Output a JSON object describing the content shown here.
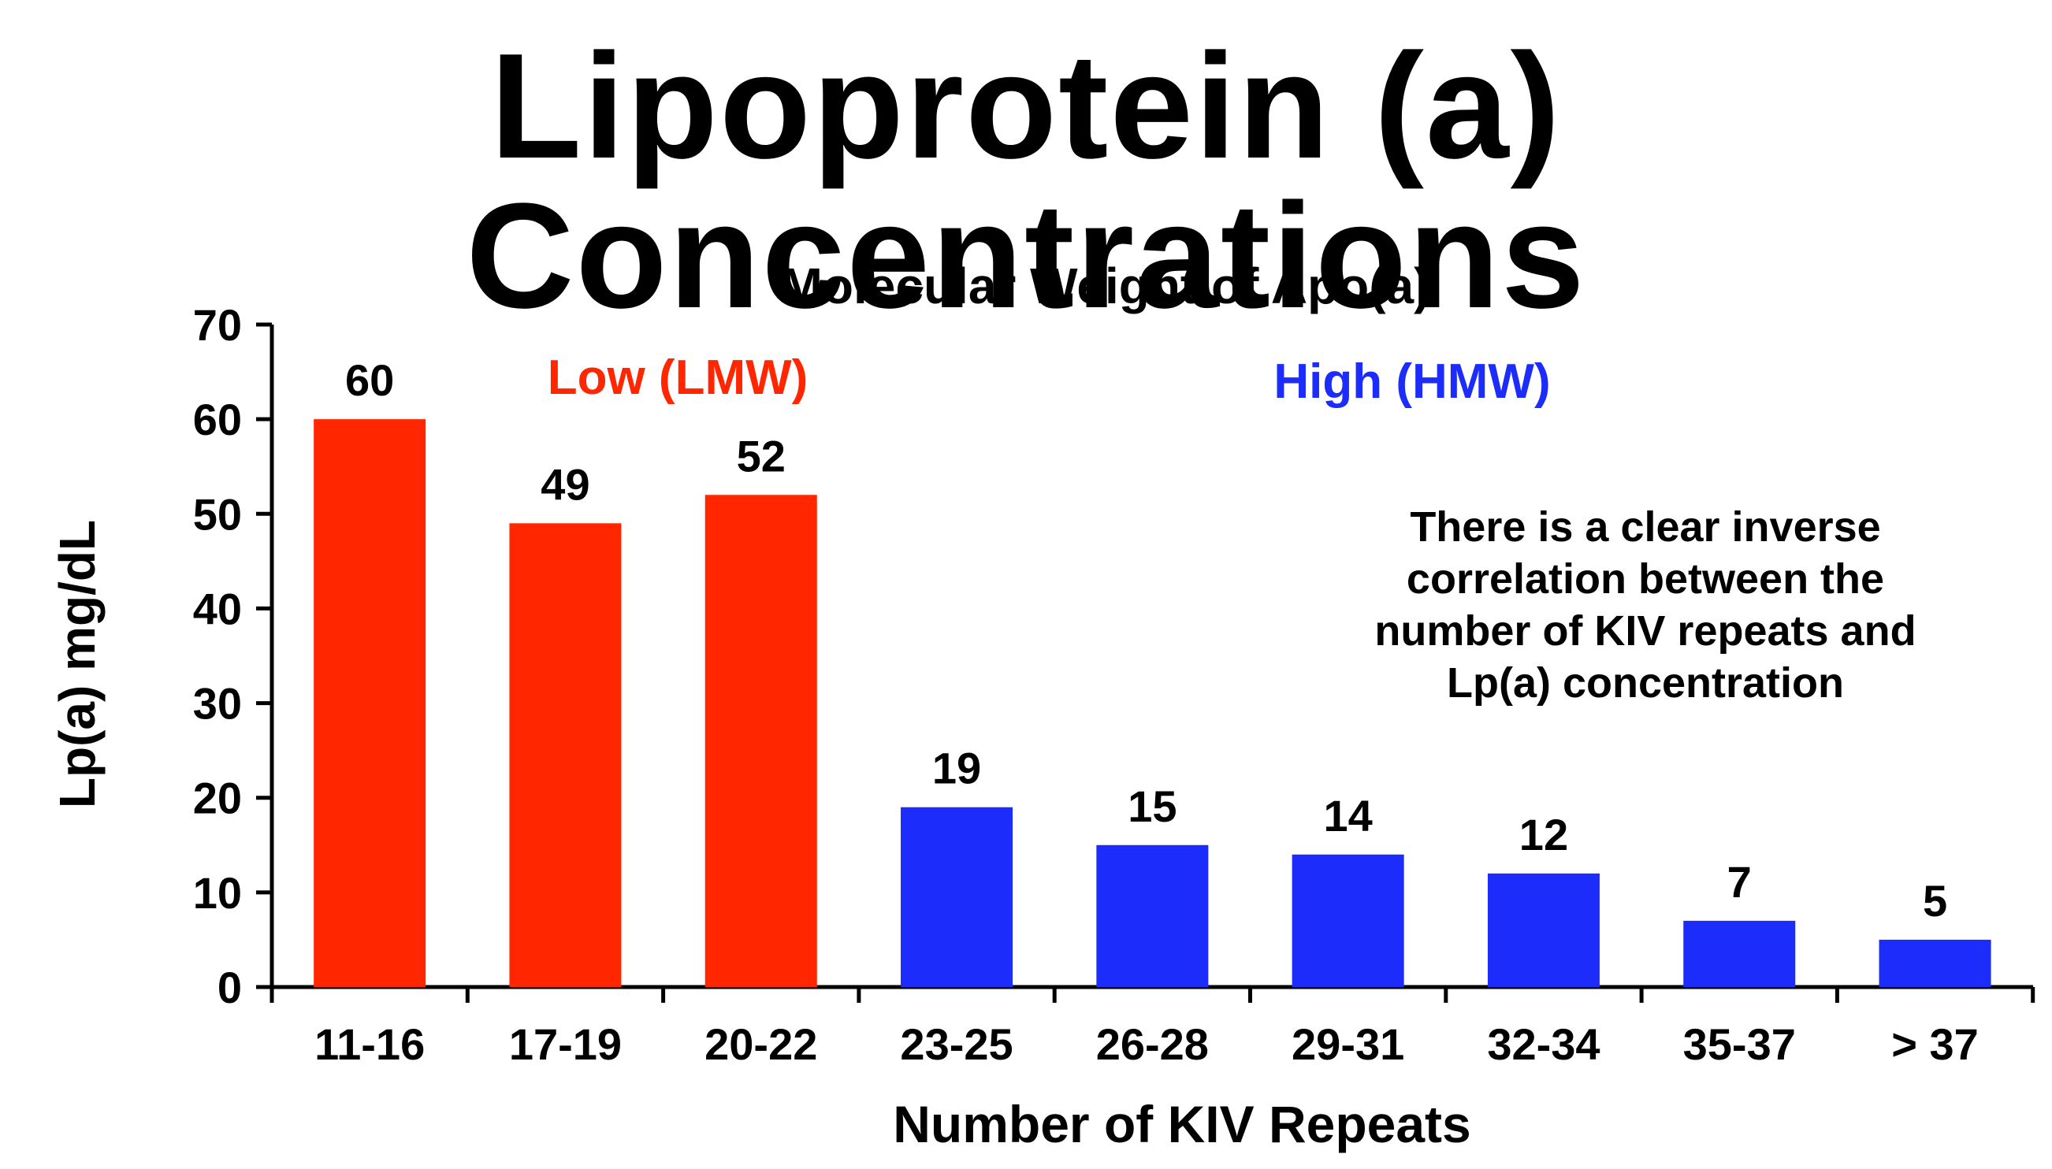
{
  "page_title": "Lipoprotein (a) Concentrations",
  "chart_data": {
    "type": "bar",
    "title": "Molecular Weight of Apo(a)",
    "xlabel": "Number of KIV Repeats",
    "ylabel": "Lp(a) mg/dL",
    "ylim": [
      0,
      70
    ],
    "yticks": [
      0,
      10,
      20,
      30,
      40,
      50,
      60,
      70
    ],
    "categories": [
      "11-16",
      "17-19",
      "20-22",
      "23-25",
      "26-28",
      "29-31",
      "32-34",
      "35-37",
      "> 37"
    ],
    "values": [
      60,
      49,
      52,
      19,
      15,
      14,
      12,
      7,
      5
    ],
    "groups": [
      "low",
      "low",
      "low",
      "high",
      "high",
      "high",
      "high",
      "high",
      "high"
    ],
    "group_labels": {
      "low": "Low (LMW)",
      "high": "High (HMW)"
    },
    "colors": {
      "low": "#ff2600",
      "high": "#1c2cfa",
      "axis": "#000000"
    },
    "annotation": [
      "There is a clear inverse",
      "correlation between the",
      "number of KIV repeats and",
      "Lp(a) concentration"
    ]
  }
}
